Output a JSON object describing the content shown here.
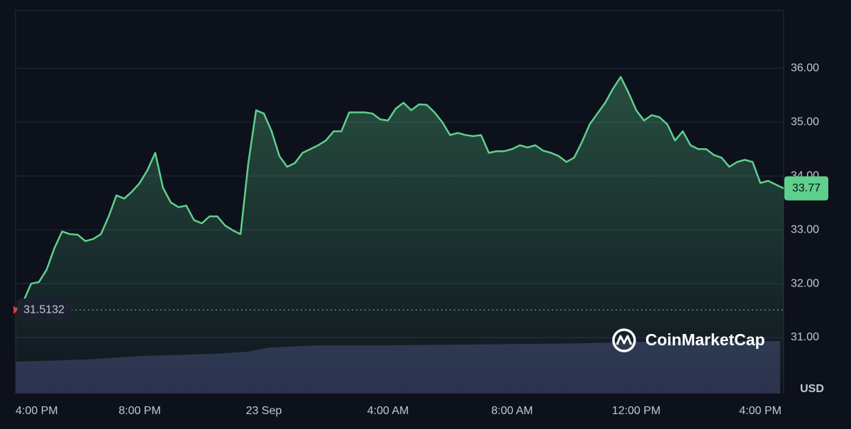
{
  "chart_data": {
    "type": "line",
    "categories": [
      "4:00 PM",
      null,
      null,
      null,
      null,
      null,
      null,
      null,
      null,
      null,
      null,
      null,
      null,
      null,
      null,
      null,
      "8:00 PM",
      null,
      null,
      null,
      null,
      null,
      null,
      null,
      null,
      null,
      null,
      null,
      null,
      null,
      null,
      null,
      "23 Sep",
      null,
      null,
      null,
      null,
      null,
      null,
      null,
      null,
      null,
      null,
      null,
      null,
      null,
      null,
      null,
      "4:00 AM",
      null,
      null,
      null,
      null,
      null,
      null,
      null,
      null,
      null,
      null,
      null,
      null,
      null,
      null,
      null,
      "8:00 AM",
      null,
      null,
      null,
      null,
      null,
      null,
      null,
      null,
      null,
      null,
      null,
      null,
      null,
      null,
      null,
      "12:00 PM",
      null,
      null,
      null,
      null,
      null,
      null,
      null,
      null,
      null,
      null,
      null,
      null,
      null,
      null,
      null,
      "4:00 PM",
      null,
      null,
      null
    ],
    "values": [
      31.51,
      31.67,
      32.0,
      32.03,
      32.26,
      32.66,
      32.97,
      32.92,
      32.91,
      32.79,
      32.83,
      32.92,
      33.25,
      33.64,
      33.58,
      33.71,
      33.87,
      34.11,
      34.43,
      33.78,
      33.51,
      33.42,
      33.45,
      33.18,
      33.12,
      33.25,
      33.25,
      33.08,
      32.99,
      32.92,
      34.24,
      35.22,
      35.16,
      34.83,
      34.37,
      34.17,
      34.24,
      34.43,
      34.5,
      34.57,
      34.66,
      34.83,
      34.83,
      35.18,
      35.18,
      35.18,
      35.16,
      35.05,
      35.03,
      35.25,
      35.36,
      35.22,
      35.33,
      35.32,
      35.18,
      35.0,
      34.76,
      34.8,
      34.76,
      34.74,
      34.76,
      34.43,
      34.46,
      34.46,
      34.5,
      34.57,
      34.53,
      34.57,
      34.47,
      34.43,
      34.37,
      34.26,
      34.34,
      34.63,
      34.96,
      35.16,
      35.36,
      35.62,
      35.84,
      35.55,
      35.22,
      35.03,
      35.13,
      35.09,
      34.96,
      34.66,
      34.83,
      34.57,
      34.5,
      34.5,
      34.39,
      34.34,
      34.17,
      34.26,
      34.3,
      34.26,
      33.87,
      33.91,
      33.84,
      33.77
    ],
    "color": "#5fd08c",
    "ylim": [
      29.96,
      37.07
    ],
    "yticks": [
      {
        "value": 31,
        "label": "31.00"
      },
      {
        "value": 32,
        "label": "32.00"
      },
      {
        "value": 33,
        "label": "33.00"
      },
      {
        "value": 34,
        "label": "34.00"
      },
      {
        "value": 35,
        "label": "35.00"
      },
      {
        "value": 36,
        "label": "36.00"
      }
    ],
    "grid": true,
    "y_unit": "USD",
    "open_price": 31.5132,
    "current_price": 33.77
  },
  "watermark": "CoinMarketCap"
}
